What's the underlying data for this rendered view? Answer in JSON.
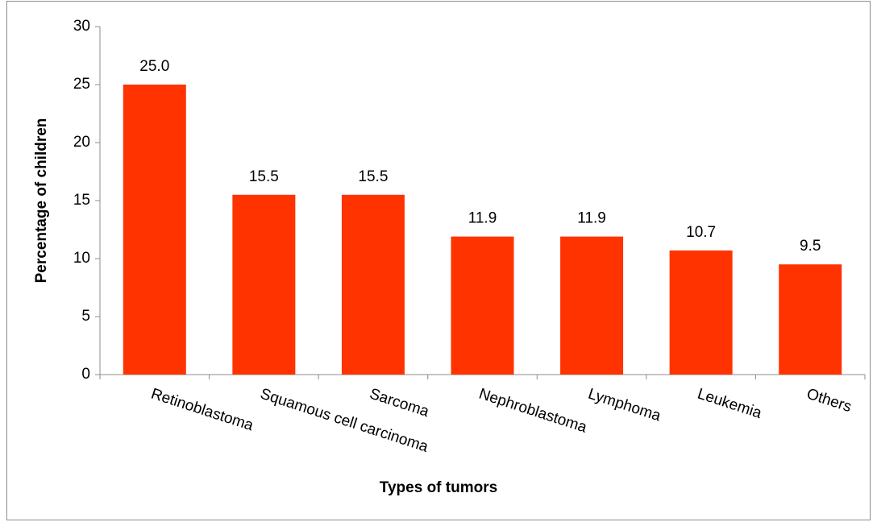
{
  "chart_data": {
    "type": "bar",
    "categories": [
      "Retinoblastoma",
      "Squamous cell carcinoma",
      "Sarcoma",
      "Nephroblastoma",
      "Lymphoma",
      "Leukemia",
      "Others"
    ],
    "values": [
      25,
      15.5,
      15.5,
      11.9,
      11.9,
      10.7,
      9.5
    ],
    "value_labels": [
      "25.0",
      "15.5",
      "15.5",
      "11.9",
      "11.9",
      "10.7",
      "9.5"
    ],
    "color": "#ff3300",
    "ylim": [
      0,
      30
    ],
    "yticks": [
      0,
      5,
      10,
      15,
      20,
      25,
      30
    ],
    "grid": false,
    "xlabel": "Types of tumors",
    "ylabel": "Percentage of children"
  }
}
